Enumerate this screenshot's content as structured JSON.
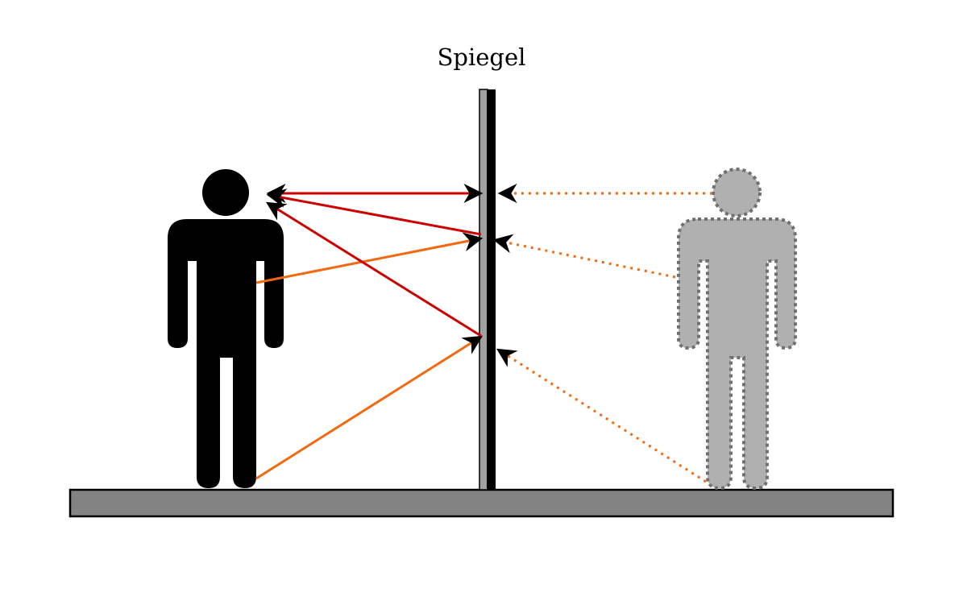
{
  "mirror": {
    "label": "Spiegel"
  },
  "colors": {
    "real_person": "#000000",
    "virtual_person": "#b0b0b0",
    "virtual_outline": "#707070",
    "floor": "#838383",
    "mirror_glass": "#a0a0a0",
    "mirror_back": "#000000",
    "incident_ray": "#f2690f",
    "reflected_ray": "#cc0000",
    "virtual_ray": "#f2690f"
  },
  "icons": {
    "real_person": "person-icon",
    "virtual_person": "mirror-image-person-icon"
  }
}
